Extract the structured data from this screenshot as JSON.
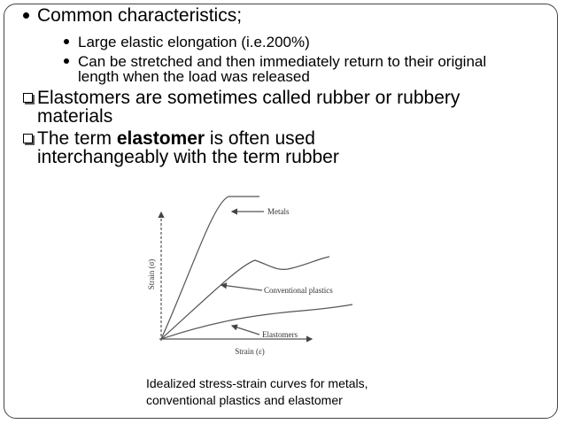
{
  "bullets": [
    {
      "text": "Common characteristics;",
      "sub": [
        "Large elastic elongation (i.e.200%)",
        "Can be stretched and then immediately return to their original length when the load was released"
      ]
    }
  ],
  "points": [
    {
      "parts": [
        "Elastomers are sometimes called rubber or rubbery materials"
      ]
    },
    {
      "parts": [
        "The term ",
        "elastomer",
        " is often used interchangeably with the term rubber"
      ]
    }
  ],
  "figure": {
    "labels": [
      "Metals",
      "Conventional plastics",
      "Elastomers"
    ],
    "y_label": "Strain (σ)",
    "x_label": "Strain (ε)",
    "caption": [
      "Idealized stress-strain curves for metals,",
      "conventional plastics and elastomer"
    ]
  }
}
